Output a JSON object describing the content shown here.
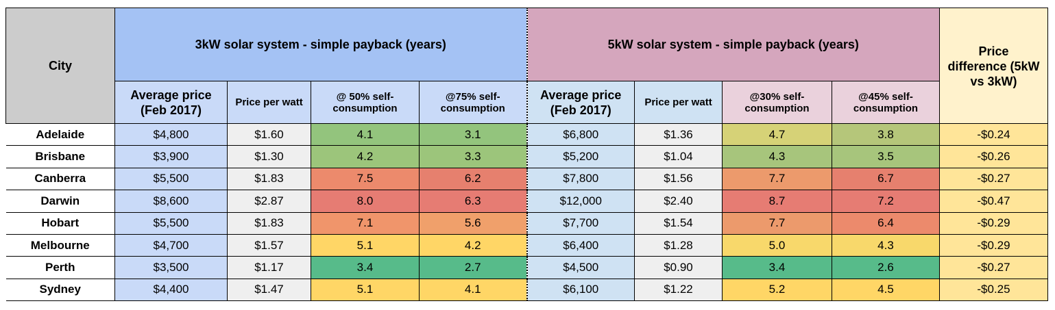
{
  "header": {
    "city": "City",
    "group_3kw": "3kW solar system - simple payback (years)",
    "group_5kw": "5kW solar system - simple payback (years)",
    "price_diff_line1": "Price",
    "price_diff_line2": "difference (5kW",
    "price_diff_line3": "vs 3kW)"
  },
  "subheaders": {
    "avg_price_line1": "Average price",
    "avg_price_line2": "(Feb 2017)",
    "price_per_watt": "Price per watt",
    "sc50_line1": "@ 50% self-",
    "sc50_line2": "consumption",
    "sc75_line1": "@75% self-",
    "sc75_line2": "consumption",
    "avg_price5_line1": "Average price",
    "avg_price5_line2": "(Feb 2017)",
    "price_per_watt5": "Price per watt",
    "sc30_line1": "@30% self-",
    "sc30_line2": "consumption",
    "sc45_line1": "@45% self-",
    "sc45_line2": "consumption"
  },
  "rows": [
    {
      "city": "Adelaide",
      "avg3": "$4,800",
      "ppw3": "$1.60",
      "p50": "4.1",
      "p75": "3.1",
      "avg5": "$6,800",
      "ppw5": "$1.36",
      "p30": "4.7",
      "p45": "3.8",
      "diff": "-$0.24",
      "colors": {
        "p50": "#93c47d",
        "p75": "#93c47d",
        "p30": "#d6d277",
        "p45": "#b5c67a"
      }
    },
    {
      "city": "Brisbane",
      "avg3": "$3,900",
      "ppw3": "$1.30",
      "p50": "4.2",
      "p75": "3.3",
      "avg5": "$5,200",
      "ppw5": "$1.04",
      "p30": "4.3",
      "p45": "3.5",
      "diff": "-$0.26",
      "colors": {
        "p50": "#9cc57b",
        "p75": "#9cc57b",
        "p30": "#a7c57c",
        "p45": "#a7c57c"
      }
    },
    {
      "city": "Canberra",
      "avg3": "$5,500",
      "ppw3": "$1.83",
      "p50": "7.5",
      "p75": "6.2",
      "avg5": "$7,800",
      "ppw5": "$1.56",
      "p30": "7.7",
      "p45": "6.7",
      "diff": "-$0.27",
      "colors": {
        "p50": "#ec8a6c",
        "p75": "#e6806e",
        "p30": "#ec9a6c",
        "p45": "#e6806e"
      }
    },
    {
      "city": "Darwin",
      "avg3": "$8,600",
      "ppw3": "$2.87",
      "p50": "8.0",
      "p75": "6.3",
      "avg5": "$12,000",
      "ppw5": "$2.40",
      "p30": "8.7",
      "p45": "7.2",
      "diff": "-$0.47",
      "colors": {
        "p50": "#e67c73",
        "p75": "#e67c73",
        "p30": "#e67c73",
        "p45": "#e67c73"
      }
    },
    {
      "city": "Hobart",
      "avg3": "$5,500",
      "ppw3": "$1.83",
      "p50": "7.1",
      "p75": "5.6",
      "avg5": "$7,700",
      "ppw5": "$1.54",
      "p30": "7.7",
      "p45": "6.4",
      "diff": "-$0.29",
      "colors": {
        "p50": "#f0956b",
        "p75": "#f0a06b",
        "p30": "#ec9a6c",
        "p45": "#ec8a6c"
      }
    },
    {
      "city": "Melbourne",
      "avg3": "$4,700",
      "ppw3": "$1.57",
      "p50": "5.1",
      "p75": "4.2",
      "avg5": "$6,400",
      "ppw5": "$1.28",
      "p30": "5.0",
      "p45": "4.3",
      "diff": "-$0.29",
      "colors": {
        "p50": "#ffd666",
        "p75": "#ffd666",
        "p30": "#f8d86b",
        "p45": "#f8d86b"
      }
    },
    {
      "city": "Perth",
      "avg3": "$3,500",
      "ppw3": "$1.17",
      "p50": "3.4",
      "p75": "2.7",
      "avg5": "$4,500",
      "ppw5": "$0.90",
      "p30": "3.4",
      "p45": "2.6",
      "diff": "-$0.27",
      "colors": {
        "p50": "#57bb8a",
        "p75": "#57bb8a",
        "p30": "#57bb8a",
        "p45": "#57bb8a"
      }
    },
    {
      "city": "Sydney",
      "avg3": "$4,400",
      "ppw3": "$1.47",
      "p50": "5.1",
      "p75": "4.1",
      "avg5": "$6,100",
      "ppw5": "$1.22",
      "p30": "5.2",
      "p45": "4.5",
      "diff": "-$0.25",
      "colors": {
        "p50": "#ffd666",
        "p75": "#ffd666",
        "p30": "#ffd666",
        "p45": "#ffd666"
      }
    }
  ]
}
